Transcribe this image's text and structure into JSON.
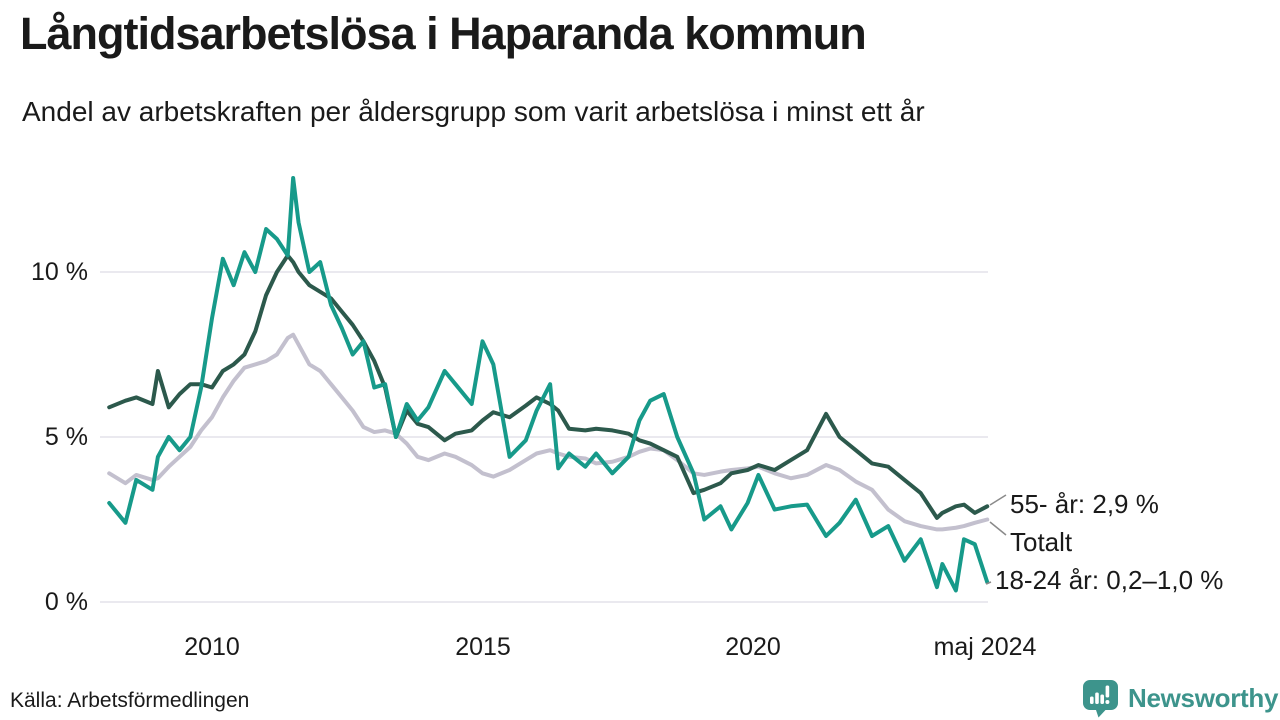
{
  "header": {
    "title": "Långtidsarbetslösa i Haparanda kommun",
    "subtitle": "Andel av arbetskraften per åldersgrupp som varit arbetslösa i minst ett år"
  },
  "chart_data": {
    "type": "line",
    "title": "Långtidsarbetslösa i Haparanda kommun",
    "subtitle": "Andel av arbetskraften per åldersgrupp som varit arbetslösa i minst ett år",
    "x_unit": "decimal_year",
    "xlim": [
      2008.05,
      2024.45
    ],
    "ylim": [
      0,
      13.5
    ],
    "grid": "horizontal",
    "legend_position": "right-edge-annotations",
    "x": [
      2008.1,
      2008.4,
      2008.6,
      2008.9,
      2009.0,
      2009.2,
      2009.4,
      2009.6,
      2009.8,
      2010.0,
      2010.2,
      2010.4,
      2010.6,
      2010.8,
      2011.0,
      2011.2,
      2011.4,
      2011.5,
      2011.6,
      2011.8,
      2012.0,
      2012.2,
      2012.4,
      2012.6,
      2012.8,
      2013.0,
      2013.2,
      2013.4,
      2013.6,
      2013.8,
      2014.0,
      2014.3,
      2014.5,
      2014.8,
      2015.0,
      2015.2,
      2015.5,
      2015.8,
      2016.0,
      2016.25,
      2016.4,
      2016.6,
      2016.9,
      2017.1,
      2017.4,
      2017.7,
      2017.9,
      2018.1,
      2018.35,
      2018.6,
      2018.9,
      2019.1,
      2019.4,
      2019.6,
      2019.9,
      2020.1,
      2020.4,
      2020.7,
      2021.0,
      2021.35,
      2021.6,
      2021.9,
      2022.2,
      2022.5,
      2022.8,
      2023.1,
      2023.4,
      2023.5,
      2023.75,
      2023.9,
      2024.1,
      2024.33
    ],
    "series": [
      {
        "name": "55- år",
        "label": "55- år: 2,9 %",
        "last_value_pct": "2,9",
        "color": "#2c594c",
        "values": [
          5.9,
          6.1,
          6.2,
          6.0,
          7.0,
          5.9,
          6.3,
          6.6,
          6.6,
          6.5,
          7.0,
          7.2,
          7.5,
          8.2,
          9.3,
          10.0,
          10.5,
          10.3,
          10.0,
          9.6,
          9.4,
          9.2,
          8.8,
          8.4,
          7.9,
          7.3,
          6.5,
          5.0,
          5.8,
          5.4,
          5.3,
          4.9,
          5.1,
          5.2,
          5.5,
          5.75,
          5.6,
          5.95,
          6.2,
          6.0,
          5.8,
          5.25,
          5.2,
          5.25,
          5.2,
          5.1,
          4.9,
          4.8,
          4.6,
          4.4,
          3.3,
          3.4,
          3.6,
          3.9,
          4.0,
          4.15,
          4.0,
          4.3,
          4.6,
          5.7,
          5.0,
          4.6,
          4.2,
          4.1,
          3.7,
          3.3,
          2.55,
          2.7,
          2.9,
          2.95,
          2.7,
          2.9
        ]
      },
      {
        "name": "Totalt",
        "label": "Totalt",
        "color": "#c3c0ce",
        "values": [
          3.9,
          3.6,
          3.85,
          3.7,
          3.75,
          4.1,
          4.4,
          4.7,
          5.2,
          5.6,
          6.2,
          6.7,
          7.1,
          7.2,
          7.3,
          7.5,
          8.0,
          8.1,
          7.8,
          7.2,
          7.0,
          6.6,
          6.2,
          5.8,
          5.3,
          5.15,
          5.2,
          5.1,
          4.8,
          4.4,
          4.3,
          4.5,
          4.4,
          4.15,
          3.9,
          3.8,
          4.0,
          4.3,
          4.5,
          4.6,
          4.5,
          4.4,
          4.35,
          4.2,
          4.25,
          4.4,
          4.55,
          4.65,
          4.6,
          4.3,
          3.9,
          3.85,
          3.95,
          4.0,
          4.05,
          4.1,
          3.9,
          3.75,
          3.85,
          4.15,
          4.0,
          3.65,
          3.4,
          2.8,
          2.45,
          2.3,
          2.2,
          2.2,
          2.25,
          2.3,
          2.4,
          2.5
        ]
      },
      {
        "name": "18-24 år",
        "label": "18-24 år: 0,2–1,0 %",
        "last_value_pct_range": "0,2–1,0",
        "color": "#179a8a",
        "values": [
          3.0,
          2.4,
          3.7,
          3.4,
          4.4,
          5.0,
          4.6,
          5.0,
          6.5,
          8.6,
          10.4,
          9.6,
          10.6,
          10.0,
          11.3,
          11.0,
          10.5,
          12.85,
          11.5,
          10.0,
          10.3,
          9.0,
          8.3,
          7.5,
          7.9,
          6.5,
          6.6,
          5.0,
          6.0,
          5.5,
          5.9,
          7.0,
          6.6,
          6.0,
          7.9,
          7.2,
          4.4,
          4.9,
          5.8,
          6.6,
          4.05,
          4.5,
          4.1,
          4.5,
          3.9,
          4.4,
          5.5,
          6.1,
          6.3,
          5.0,
          3.9,
          2.5,
          2.9,
          2.2,
          3.0,
          3.85,
          2.8,
          2.9,
          2.95,
          2.0,
          2.4,
          3.1,
          2.0,
          2.3,
          1.25,
          1.9,
          0.45,
          1.15,
          0.35,
          1.9,
          1.75,
          0.6
        ]
      }
    ],
    "yticks": [
      {
        "v": 0,
        "label": "0 %"
      },
      {
        "v": 5,
        "label": "5 %"
      },
      {
        "v": 10,
        "label": "10 %"
      }
    ],
    "xticks": [
      {
        "t": 2010,
        "label": "2010"
      },
      {
        "t": 2015,
        "label": "2015"
      },
      {
        "t": 2020,
        "label": "2020"
      },
      {
        "t": 2024.33,
        "label": "maj 2024"
      }
    ]
  },
  "footer": {
    "source": "Källa: Arbetsförmedlingen",
    "brand": "Newsworthy"
  },
  "colors": {
    "text": "#1a1a1a",
    "grid": "#e4e2ea",
    "leader": "#8a8a8a",
    "brand": "#3d948c",
    "series-55": "#2c594c",
    "series-totalt": "#c3c0ce",
    "series-1824": "#179a8a"
  }
}
